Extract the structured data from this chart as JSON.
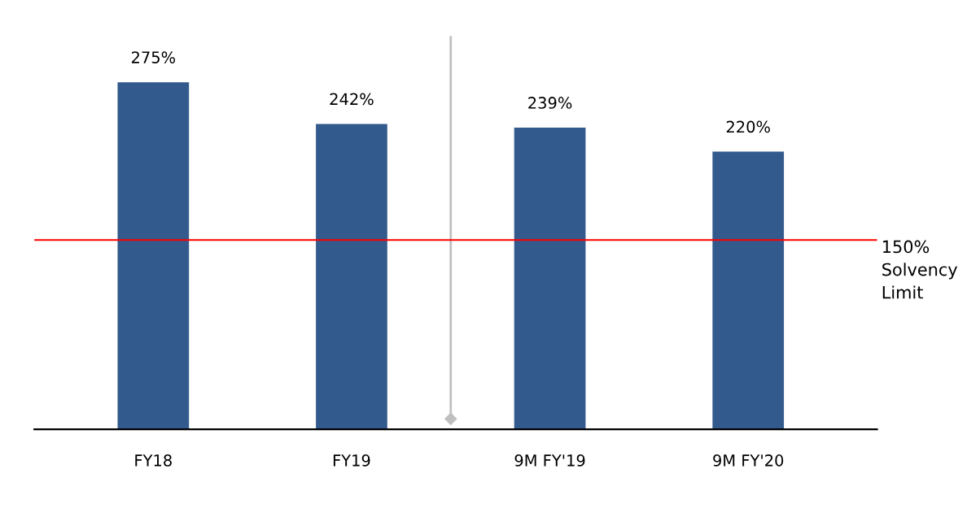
{
  "chart_data": {
    "type": "bar",
    "categories": [
      "FY18",
      "FY19",
      "9M FY'19",
      "9M FY'20"
    ],
    "values": [
      275,
      242,
      239,
      220
    ],
    "value_labels": [
      "275%",
      "242%",
      "239%",
      "220%"
    ],
    "color": "#335a8c",
    "ref_lines": [
      {
        "axis": "y",
        "value": 150,
        "label": "150%\nSolvency\nLimit",
        "color": "#ff0000"
      }
    ],
    "grid": false,
    "legend": false,
    "tick_labels": "x"
  }
}
